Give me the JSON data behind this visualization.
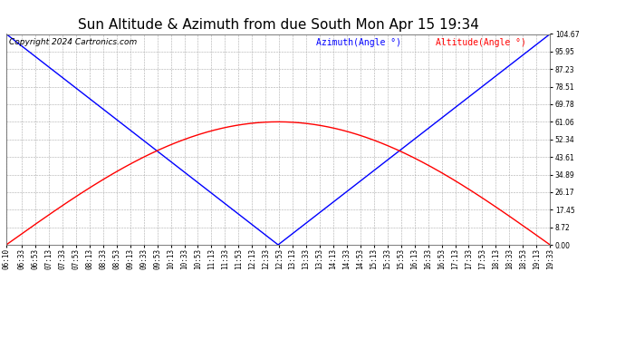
{
  "title": "Sun Altitude & Azimuth from due South Mon Apr 15 19:34",
  "copyright": "Copyright 2024 Cartronics.com",
  "legend_azimuth": "Azimuth(Angle °)",
  "legend_altitude": "Altitude(Angle °)",
  "azimuth_color": "blue",
  "altitude_color": "red",
  "background_color": "#ffffff",
  "grid_color": "#aaaaaa",
  "yticks": [
    0.0,
    8.72,
    17.45,
    26.17,
    34.89,
    43.61,
    52.34,
    61.06,
    69.78,
    78.51,
    87.23,
    95.95,
    104.67
  ],
  "ymin": 0.0,
  "ymax": 104.67,
  "altitude_peak": 61.06,
  "azimuth_max": 104.67,
  "title_fontsize": 11,
  "legend_fontsize": 7,
  "tick_fontsize": 5.5,
  "copyright_fontsize": 6.5,
  "xtick_labels": [
    "06:10",
    "06:33",
    "06:53",
    "07:13",
    "07:33",
    "07:53",
    "08:13",
    "08:33",
    "08:53",
    "09:13",
    "09:33",
    "09:53",
    "10:13",
    "10:33",
    "10:53",
    "11:13",
    "11:33",
    "11:53",
    "12:13",
    "12:33",
    "12:53",
    "13:13",
    "13:33",
    "13:53",
    "14:13",
    "14:33",
    "14:53",
    "15:13",
    "15:33",
    "15:53",
    "16:13",
    "16:33",
    "16:53",
    "17:13",
    "17:33",
    "17:53",
    "18:13",
    "18:33",
    "18:53",
    "19:13",
    "19:33"
  ]
}
